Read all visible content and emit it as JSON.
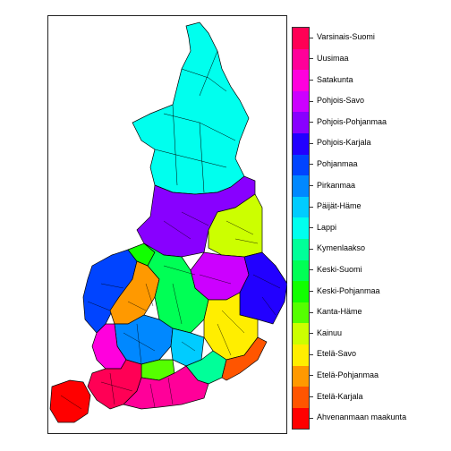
{
  "map": {
    "regions": [
      {
        "name": "Varsinais-Suomi",
        "color": "#FF0055"
      },
      {
        "name": "Uusimaa",
        "color": "#FF0099"
      },
      {
        "name": "Satakunta",
        "color": "#FF00DD"
      },
      {
        "name": "Pohjois-Savo",
        "color": "#CC00FF"
      },
      {
        "name": "Pohjois-Pohjanmaa",
        "color": "#8800FF"
      },
      {
        "name": "Pohjois-Karjala",
        "color": "#2200FF"
      },
      {
        "name": "Pohjanmaa",
        "color": "#0044FF"
      },
      {
        "name": "Pirkanmaa",
        "color": "#0088FF"
      },
      {
        "name": "Päijät-Häme",
        "color": "#00CCFF"
      },
      {
        "name": "Lappi",
        "color": "#00FFEE"
      },
      {
        "name": "Kymenlaakso",
        "color": "#00FF99"
      },
      {
        "name": "Keski-Suomi",
        "color": "#00FF55"
      },
      {
        "name": "Keski-Pohjanmaa",
        "color": "#11FF00"
      },
      {
        "name": "Kanta-Häme",
        "color": "#55FF00"
      },
      {
        "name": "Kainuu",
        "color": "#CCFF00"
      },
      {
        "name": "Etelä-Savo",
        "color": "#FFEE00"
      },
      {
        "name": "Etelä-Pohjanmaa",
        "color": "#FF9900"
      },
      {
        "name": "Etelä-Karjala",
        "color": "#FF5500"
      },
      {
        "name": "Ahvenanmaan maakunta",
        "color": "#FF0000"
      }
    ]
  }
}
